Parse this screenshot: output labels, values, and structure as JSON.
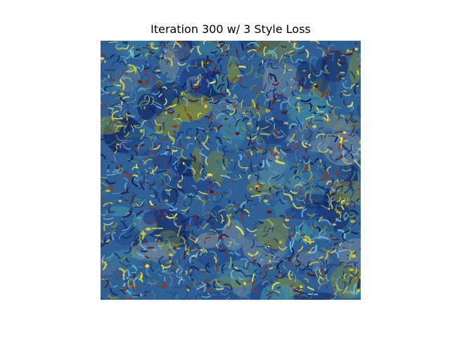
{
  "figure": {
    "title": "Iteration 300 w/ 3 Style Loss"
  },
  "image": {
    "kind": "style-transfer-texture",
    "palette": {
      "base_blue": "#2f5f93",
      "deep_blue": "#1d3f86",
      "navy": "#0e1f5a",
      "teal": "#3f8aa0",
      "sky": "#6fb6d6",
      "olive": "#7d8a3a",
      "yellow": "#d8c83a",
      "bright_yellow": "#f0e25a",
      "rust": "#8a3a20",
      "dark_red": "#5a1a14",
      "gray_blue": "#6f8599"
    }
  }
}
